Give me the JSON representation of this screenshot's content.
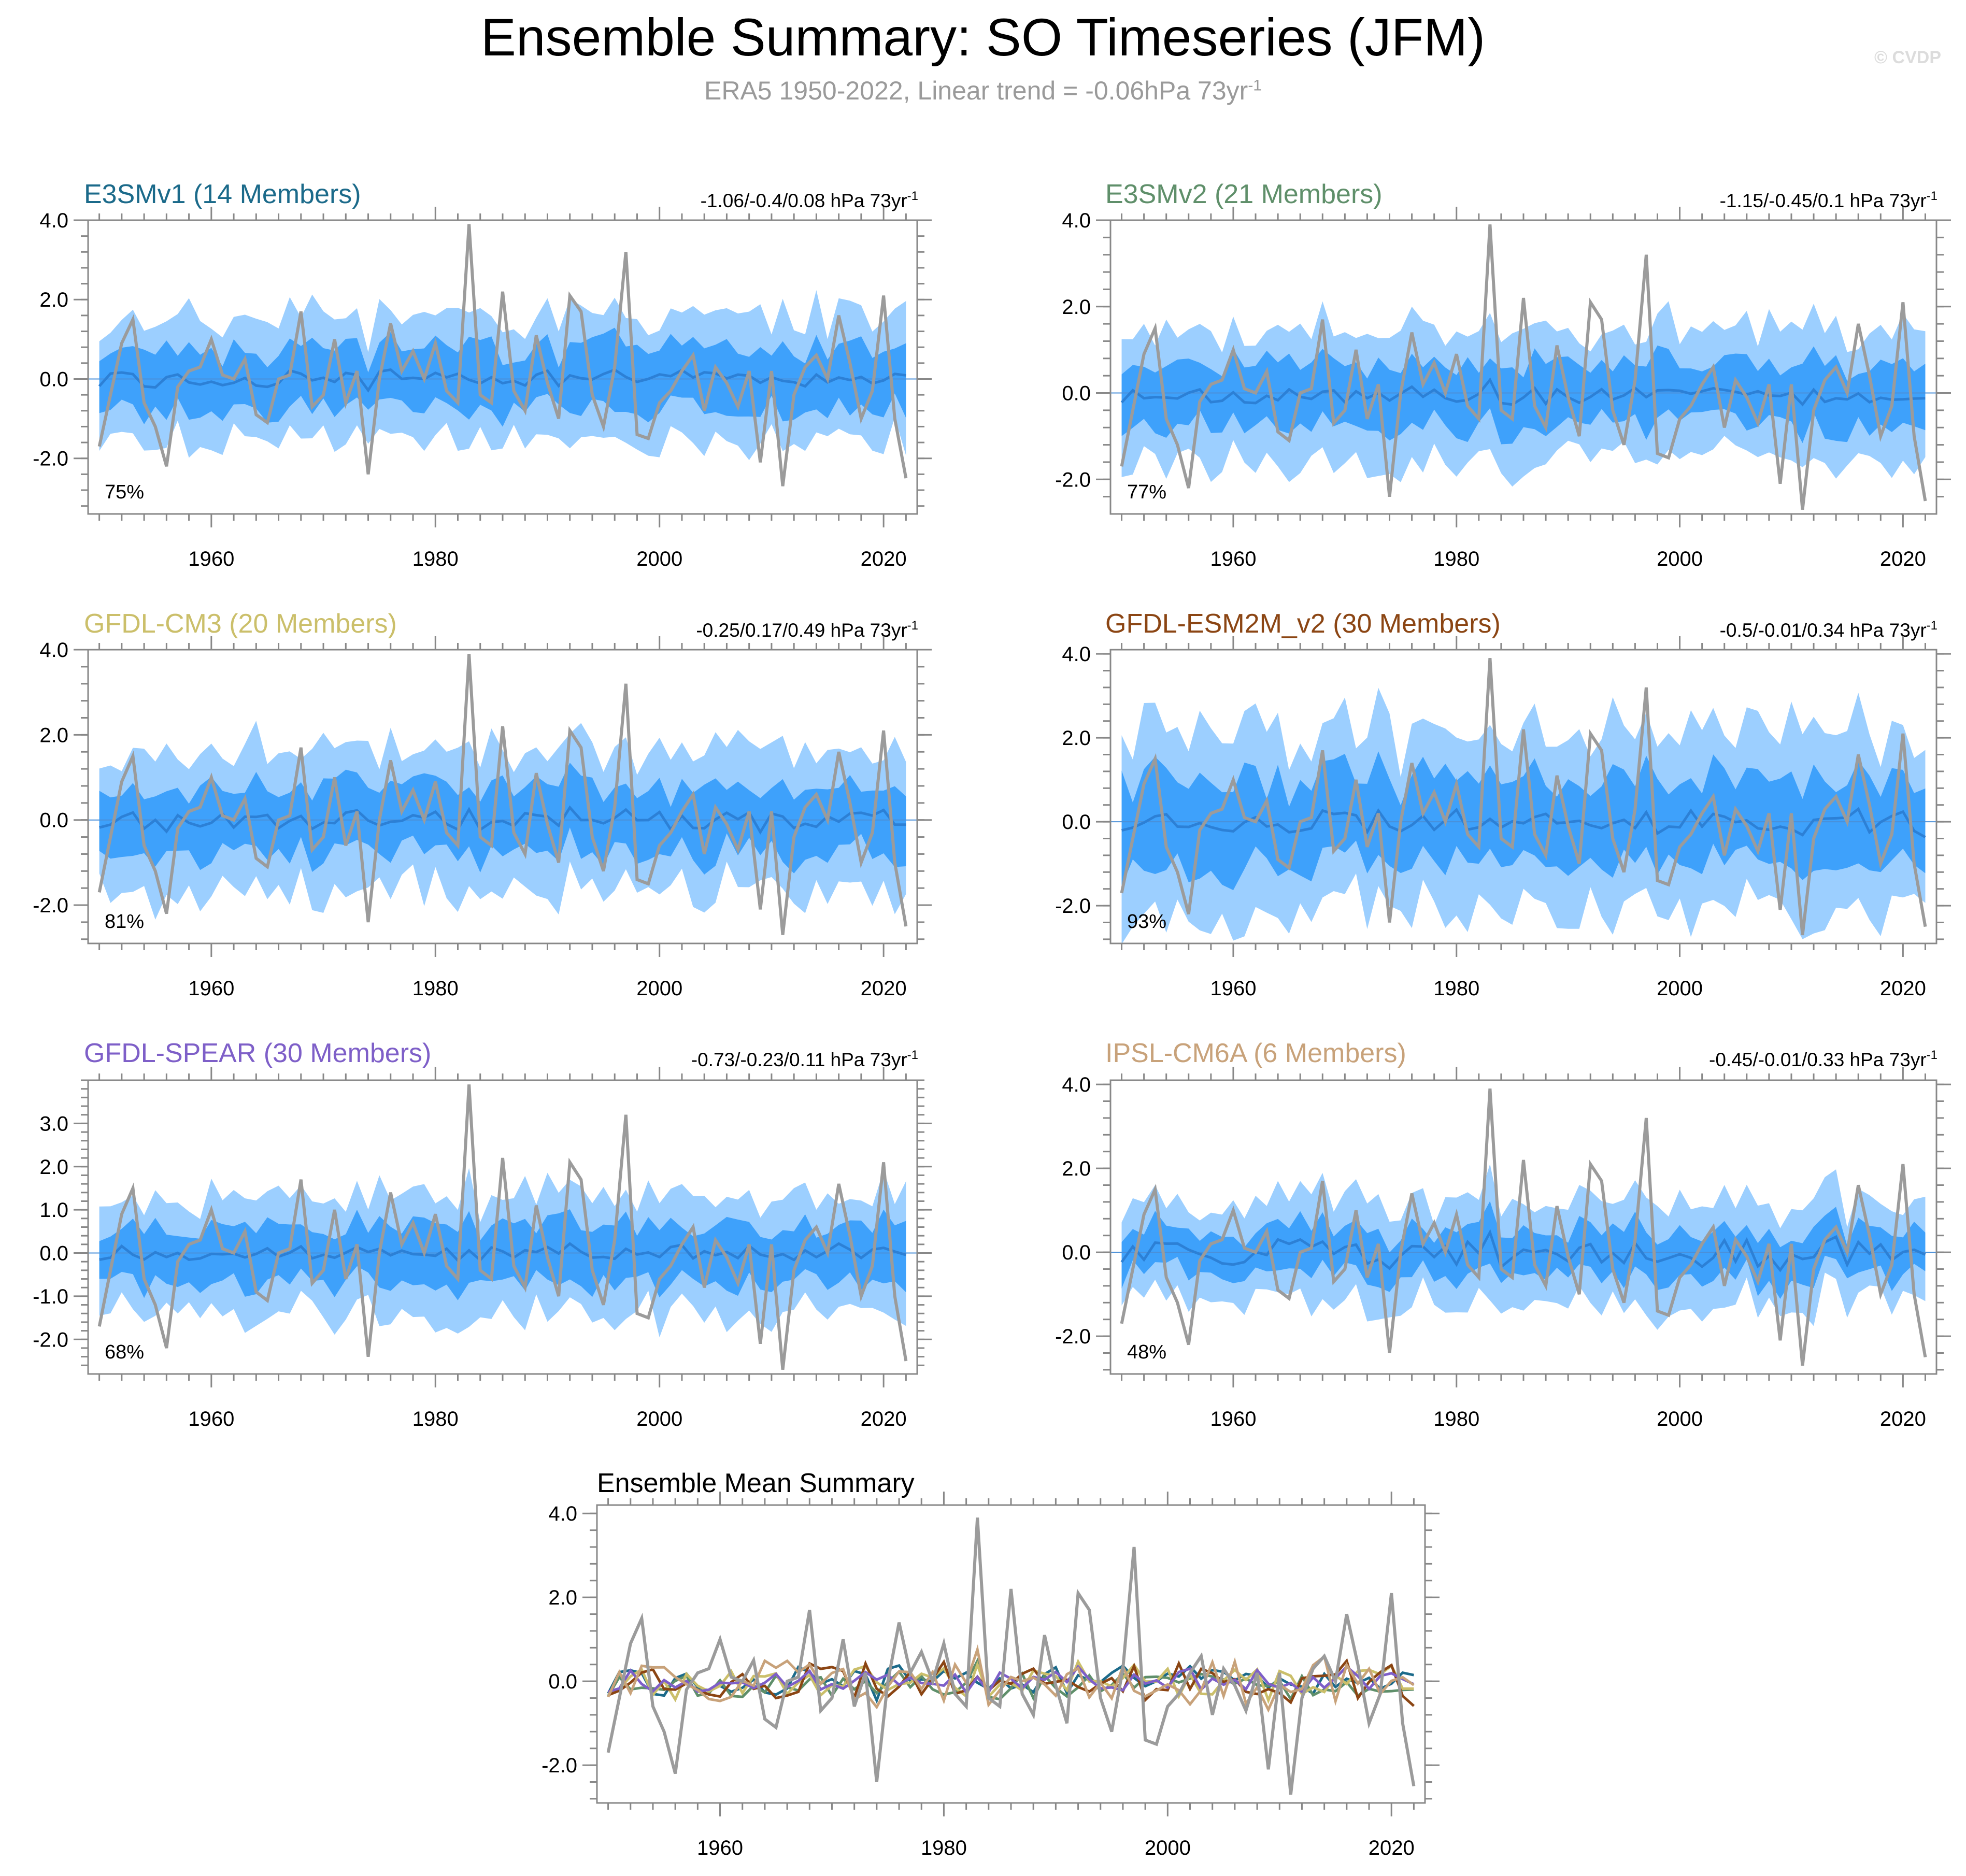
{
  "title": "Ensemble Summary: SO Timeseries (JFM)",
  "subtitle": {
    "text": "ERA5 1950-2022, Linear trend = -0.06hPa 73yr",
    "sup": "-1"
  },
  "watermark": "© CVDP",
  "colors": {
    "outer_band": "#9ccfff",
    "inner_band": "#3ea1fb",
    "ens_mean": "#2c80d6",
    "obs": "#9b9b9b",
    "axis": "#888888"
  },
  "chart_data": [
    {
      "type": "line",
      "title": "E3SMv1 (14 Members)",
      "title_color": "#1b6a8a",
      "trend": "-1.06/-0.4/0.08 hPa 73yr",
      "trend_sup": "-1",
      "percent": "75%",
      "ylim": [
        -3.4,
        4.0
      ],
      "yticks": [
        4.0,
        2.0,
        0.0,
        -2.0
      ],
      "ytick_labels": [
        "4.0",
        "2.0",
        "0.0",
        "-2.0"
      ],
      "xlim": [
        1949,
        2023
      ],
      "xticks": [
        1960,
        1980,
        2000,
        2020
      ],
      "xtick_labels": [
        "1960",
        "1980",
        "2000",
        "2020"
      ],
      "seed": 11,
      "outer_scale": 1.0,
      "inner_scale": 1.0,
      "mean_amp": 0.22,
      "mean_offset": 0.0
    },
    {
      "type": "line",
      "title": "E3SMv2 (21 Members)",
      "title_color": "#5f8f6a",
      "trend": "-1.15/-0.45/0.1 hPa 73yr",
      "trend_sup": "-1",
      "percent": "77%",
      "ylim": [
        -2.8,
        4.0
      ],
      "yticks": [
        4.0,
        2.0,
        0.0,
        -2.0
      ],
      "ytick_labels": [
        "4.0",
        "2.0",
        "0.0",
        "-2.0"
      ],
      "xlim": [
        1949,
        2023
      ],
      "xticks": [
        1960,
        1980,
        2000,
        2020
      ],
      "xtick_labels": [
        "1960",
        "1980",
        "2000",
        "2020"
      ],
      "seed": 23,
      "outer_scale": 1.0,
      "inner_scale": 0.95,
      "mean_amp": 0.2,
      "mean_offset": -0.05
    },
    {
      "type": "line",
      "title": "GFDL-CM3 (20 Members)",
      "title_color": "#cbbf6a",
      "trend": "-0.25/0.17/0.49 hPa 73yr",
      "trend_sup": "-1",
      "percent": "81%",
      "ylim": [
        -2.9,
        4.0
      ],
      "yticks": [
        4.0,
        2.0,
        0.0,
        -2.0
      ],
      "ytick_labels": [
        "4.0",
        "2.0",
        "0.0",
        "-2.0"
      ],
      "xlim": [
        1949,
        2023
      ],
      "xticks": [
        1960,
        1980,
        2000,
        2020
      ],
      "xtick_labels": [
        "1960",
        "1980",
        "2000",
        "2020"
      ],
      "seed": 37,
      "outer_scale": 1.1,
      "inner_scale": 1.0,
      "mean_amp": 0.22,
      "mean_offset": 0.0
    },
    {
      "type": "line",
      "title": "GFDL-ESM2M_v2 (30 Members)",
      "title_color": "#8b4513",
      "trend": "-0.5/-0.01/0.34 hPa 73yr",
      "trend_sup": "-1",
      "percent": "93%",
      "ylim": [
        -2.9,
        4.1
      ],
      "yticks": [
        4.0,
        2.0,
        0.0,
        -2.0
      ],
      "ytick_labels": [
        "4.0",
        "2.0",
        "0.0",
        "-2.0"
      ],
      "xlim": [
        1949,
        2023
      ],
      "xticks": [
        1960,
        1980,
        2000,
        2020
      ],
      "xtick_labels": [
        "1960",
        "1980",
        "2000",
        "2020"
      ],
      "seed": 41,
      "outer_scale": 1.45,
      "inner_scale": 1.3,
      "mean_amp": 0.28,
      "mean_offset": 0.0
    },
    {
      "type": "line",
      "title": "GFDL-SPEAR (30 Members)",
      "title_color": "#7e5fc8",
      "trend": "-0.73/-0.23/0.11 hPa 73yr",
      "trend_sup": "-1",
      "percent": "68%",
      "ylim": [
        -2.8,
        4.0
      ],
      "yticks": [
        3.0,
        2.0,
        1.0,
        0.0,
        -1.0,
        -2.0
      ],
      "ytick_labels": [
        "3.0",
        "2.0",
        "1.0",
        "0.0",
        "-1.0",
        "-2.0"
      ],
      "xlim": [
        1949,
        2023
      ],
      "xticks": [
        1960,
        1980,
        2000,
        2020
      ],
      "xtick_labels": [
        "1960",
        "1980",
        "2000",
        "2020"
      ],
      "seed": 53,
      "outer_scale": 0.9,
      "inner_scale": 0.85,
      "mean_amp": 0.18,
      "mean_offset": 0.0
    },
    {
      "type": "line",
      "title": "IPSL-CM6A (6 Members)",
      "title_color": "#c8a27a",
      "trend": "-0.45/-0.01/0.33 hPa 73yr",
      "trend_sup": "-1",
      "percent": "48%",
      "ylim": [
        -2.9,
        4.1
      ],
      "yticks": [
        4.0,
        2.0,
        0.0,
        -2.0
      ],
      "ytick_labels": [
        "4.0",
        "2.0",
        "0.0",
        "-2.0"
      ],
      "xlim": [
        1949,
        2023
      ],
      "xticks": [
        1960,
        1980,
        2000,
        2020
      ],
      "xtick_labels": [
        "1960",
        "1980",
        "2000",
        "2020"
      ],
      "seed": 67,
      "outer_scale": 0.85,
      "inner_scale": 0.7,
      "mean_amp": 0.35,
      "mean_offset": 0.0
    },
    {
      "type": "line",
      "title": "Ensemble Mean Summary",
      "title_color": "#000000",
      "summary": true,
      "ylim": [
        -2.9,
        4.2
      ],
      "yticks": [
        4.0,
        2.0,
        0.0,
        -2.0
      ],
      "ytick_labels": [
        "4.0",
        "2.0",
        "0.0",
        "-2.0"
      ],
      "xlim": [
        1949,
        2023
      ],
      "xticks": [
        1960,
        1980,
        2000,
        2020
      ],
      "xtick_labels": [
        "1960",
        "1980",
        "2000",
        "2020"
      ],
      "series_colors": [
        "#1b6a8a",
        "#5f8f6a",
        "#cbbf6a",
        "#8b4513",
        "#7e5fc8",
        "#c8a27a"
      ]
    }
  ],
  "observations": {
    "name": "ERA5",
    "years_start": 1950,
    "values": [
      -1.7,
      -0.4,
      0.9,
      1.5,
      -0.6,
      -1.2,
      -2.2,
      -0.2,
      0.2,
      0.3,
      1.0,
      0.1,
      0.0,
      0.5,
      -0.9,
      -1.1,
      0.0,
      0.1,
      1.7,
      -0.7,
      -0.4,
      1.0,
      -0.6,
      0.2,
      -2.4,
      0.0,
      1.4,
      0.2,
      0.7,
      0.0,
      0.9,
      -0.3,
      -0.6,
      3.9,
      -0.4,
      -0.6,
      2.2,
      -0.3,
      -0.8,
      1.1,
      -0.1,
      -1.0,
      2.1,
      1.7,
      -0.4,
      -1.2,
      0.3,
      3.2,
      -1.4,
      -1.5,
      -0.6,
      -0.3,
      0.2,
      0.6,
      -0.8,
      0.3,
      -0.1,
      -0.7,
      0.2,
      -2.1,
      0.2,
      -2.7,
      -0.4,
      0.3,
      0.6,
      0.0,
      1.6,
      0.4,
      -1.0,
      -0.3,
      2.1,
      -1.0,
      -2.5
    ]
  }
}
